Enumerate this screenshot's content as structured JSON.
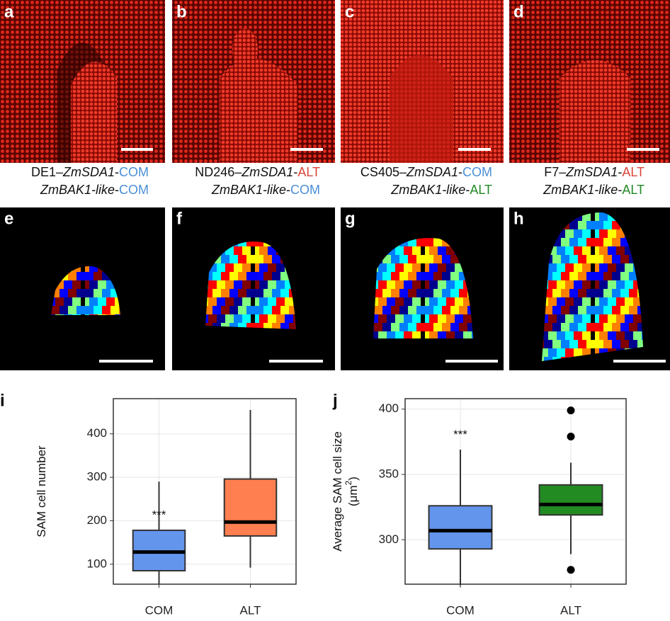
{
  "panels": [
    {
      "label": "a",
      "caption": [
        [
          {
            "text": "DE1–"
          },
          {
            "text": "ZmSDA1",
            "italic": true
          },
          {
            "text": "-"
          },
          {
            "text": "COM",
            "color": "#4a8fd6"
          }
        ],
        [
          {
            "text": "ZmBAK1-like",
            "italic": true
          },
          {
            "text": "-"
          },
          {
            "text": "COM",
            "color": "#4a8fd6"
          }
        ]
      ]
    },
    {
      "label": "b",
      "caption": [
        [
          {
            "text": "ND246–"
          },
          {
            "text": "ZmSDA1",
            "italic": true
          },
          {
            "text": "-"
          },
          {
            "text": "ALT",
            "color": "#d9443a"
          }
        ],
        [
          {
            "text": "ZmBAK1-like",
            "italic": true
          },
          {
            "text": "-"
          },
          {
            "text": "COM",
            "color": "#4a8fd6"
          }
        ]
      ]
    },
    {
      "label": "c",
      "caption": [
        [
          {
            "text": "CS405–"
          },
          {
            "text": "ZmSDA1",
            "italic": true
          },
          {
            "text": "-"
          },
          {
            "text": "COM",
            "color": "#4a8fd6"
          }
        ],
        [
          {
            "text": "ZmBAK1-like",
            "italic": true
          },
          {
            "text": "-"
          },
          {
            "text": "ALT",
            "color": "#1f8a24"
          }
        ]
      ]
    },
    {
      "label": "d",
      "caption": [
        [
          {
            "text": "F7–"
          },
          {
            "text": "ZmSDA1",
            "italic": true
          },
          {
            "text": "-"
          },
          {
            "text": "ALT",
            "color": "#d9443a"
          }
        ],
        [
          {
            "text": "ZmBAK1-like",
            "italic": true
          },
          {
            "text": "-"
          },
          {
            "text": "ALT",
            "color": "#1f8a24"
          }
        ]
      ]
    },
    {
      "label": "e"
    },
    {
      "label": "f"
    },
    {
      "label": "g"
    },
    {
      "label": "h"
    }
  ],
  "chart_data": [
    {
      "type": "box",
      "label": "i",
      "ylabel": [
        "SAM cell number"
      ],
      "annotation": "***",
      "annotation_value": 212,
      "categories": [
        "COM",
        "ALT"
      ],
      "boxes": [
        {
          "min": 55,
          "q1": 85,
          "median": 128,
          "q3": 178,
          "max": 290,
          "color": "#6495ed",
          "outliers": []
        },
        {
          "min": 92,
          "q1": 165,
          "median": 197,
          "q3": 296,
          "max": 455,
          "color": "#ff7f50",
          "outliers": []
        }
      ],
      "ylim": [
        54,
        481
      ],
      "yticks": [
        100,
        200,
        300,
        400
      ],
      "grid": true
    },
    {
      "type": "box",
      "label": "j",
      "ylabel": [
        "Average SAM cell size",
        "(μm",
        "2",
        ")"
      ],
      "annotation": "***",
      "annotation_value": 380,
      "categories": [
        "COM",
        "ALT"
      ],
      "boxes": [
        {
          "min": 265,
          "q1": 293,
          "median": 307,
          "q3": 326,
          "max": 369,
          "color": "#6495ed",
          "outliers": []
        },
        {
          "min": 289,
          "q1": 319,
          "median": 327,
          "q3": 342,
          "max": 359,
          "color": "#228b22",
          "outliers": [
            399,
            379,
            277
          ]
        }
      ],
      "ylim": [
        266,
        408
      ],
      "yticks": [
        300,
        350,
        400
      ],
      "grid": true
    }
  ]
}
